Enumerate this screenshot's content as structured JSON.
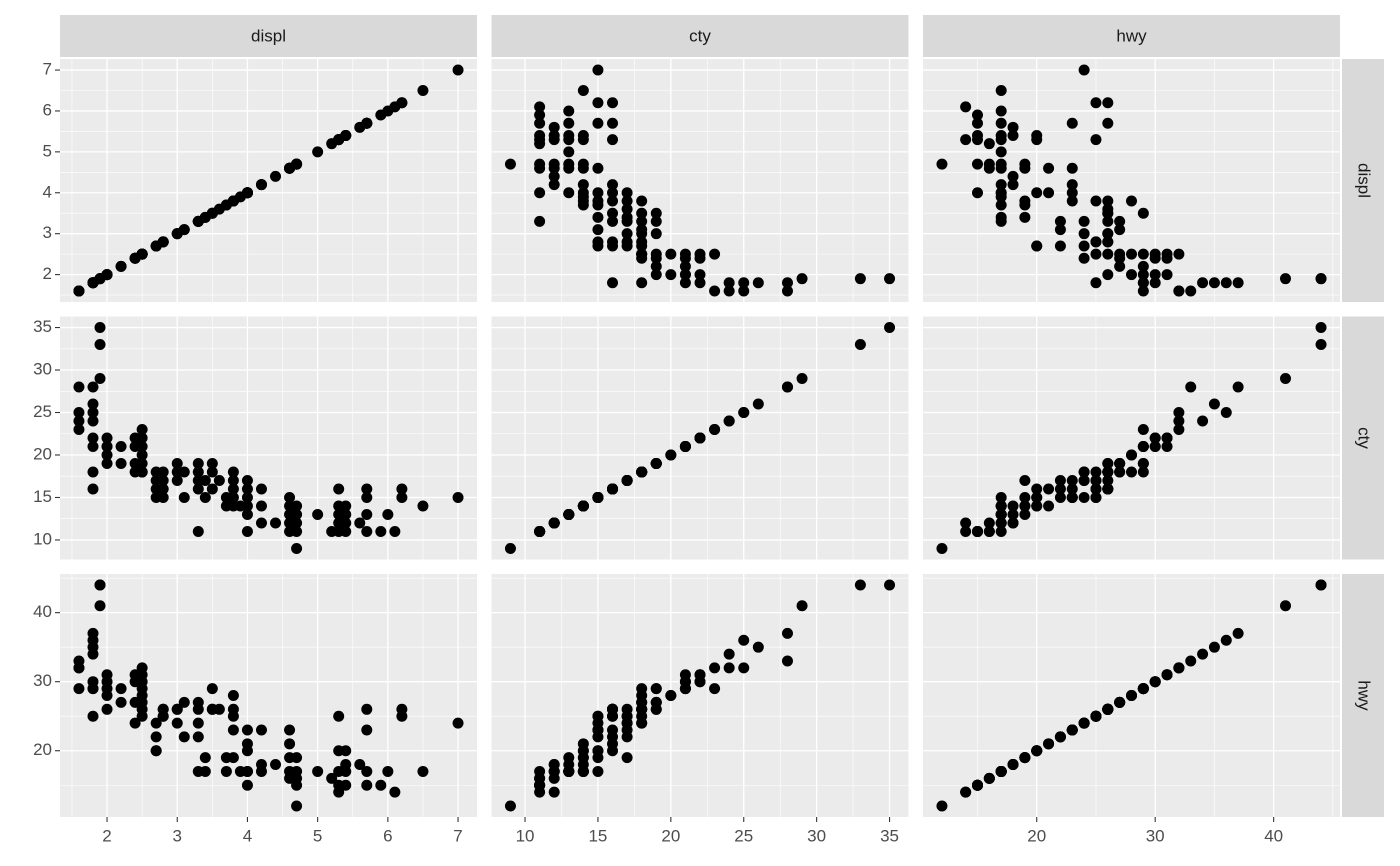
{
  "chart_data": {
    "type": "scatter_matrix",
    "variables": [
      {
        "name": "displ",
        "lim": [
          1.33,
          7.27
        ],
        "ticks": [
          2,
          3,
          4,
          5,
          6,
          7
        ],
        "values": [
          1.6,
          1.6,
          1.6,
          1.6,
          1.8,
          1.8,
          1.8,
          1.8,
          1.8,
          1.8,
          1.8,
          1.8,
          1.9,
          1.9,
          1.9,
          2.0,
          2.0,
          2.0,
          2.0,
          2.0,
          2.2,
          2.2,
          2.4,
          2.4,
          2.4,
          2.4,
          2.5,
          2.5,
          2.5,
          2.5,
          2.5,
          2.5,
          2.5,
          2.5,
          2.7,
          2.7,
          2.7,
          2.7,
          2.8,
          2.8,
          2.8,
          2.8,
          3.0,
          3.0,
          3.0,
          3.1,
          3.1,
          3.3,
          3.3,
          3.3,
          3.3,
          3.3,
          3.4,
          3.4,
          3.5,
          3.5,
          3.5,
          3.6,
          3.7,
          3.7,
          3.8,
          3.8,
          3.8,
          3.8,
          3.8,
          3.9,
          4.0,
          4.0,
          4.0,
          4.0,
          4.0,
          4.0,
          4.2,
          4.2,
          4.2,
          4.4,
          4.6,
          4.6,
          4.6,
          4.6,
          4.6,
          4.7,
          4.7,
          4.7,
          4.7,
          4.7,
          5.0,
          5.2,
          5.3,
          5.3,
          5.3,
          5.3,
          5.3,
          5.4,
          5.4,
          5.4,
          5.4,
          5.6,
          5.7,
          5.7,
          5.7,
          5.7,
          5.9,
          6.0,
          6.1,
          6.2,
          6.2,
          6.5,
          7.0
        ]
      },
      {
        "name": "cty",
        "lim": [
          7.7,
          36.3
        ],
        "ticks": [
          10,
          15,
          20,
          25,
          30,
          35
        ],
        "values": [
          28,
          24,
          25,
          23,
          18,
          21,
          28,
          26,
          25,
          24,
          16,
          22,
          35,
          33,
          29,
          21,
          22,
          20,
          19,
          21,
          21,
          19,
          21,
          19,
          18,
          22,
          23,
          21,
          19,
          18,
          20,
          22,
          18,
          18,
          17,
          16,
          15,
          18,
          16,
          18,
          17,
          15,
          18,
          17,
          19,
          18,
          15,
          18,
          17,
          16,
          11,
          19,
          15,
          17,
          19,
          18,
          16,
          17,
          15,
          14,
          18,
          16,
          15,
          17,
          14,
          14,
          17,
          15,
          14,
          16,
          13,
          11,
          14,
          12,
          16,
          12,
          15,
          14,
          13,
          12,
          11,
          14,
          13,
          12,
          9,
          11,
          13,
          11,
          16,
          14,
          11,
          13,
          12,
          13,
          11,
          12,
          14,
          12,
          16,
          15,
          13,
          11,
          11,
          13,
          11,
          16,
          15,
          14,
          15
        ]
      },
      {
        "name": "hwy",
        "lim": [
          10.4,
          45.6
        ],
        "ticks": [
          20,
          30,
          40
        ],
        "values": [
          33,
          32,
          32,
          29,
          29,
          29,
          37,
          35,
          36,
          34,
          25,
          30,
          44,
          44,
          41,
          29,
          31,
          28,
          26,
          30,
          29,
          27,
          31,
          27,
          24,
          30,
          32,
          30,
          29,
          27,
          28,
          31,
          26,
          25,
          22,
          20,
          20,
          24,
          26,
          26,
          25,
          25,
          26,
          24,
          26,
          27,
          22,
          26,
          24,
          22,
          17,
          27,
          17,
          19,
          29,
          26,
          26,
          26,
          19,
          17,
          28,
          26,
          23,
          25,
          19,
          17,
          23,
          20,
          17,
          21,
          17,
          15,
          18,
          17,
          23,
          18,
          23,
          21,
          19,
          17,
          16,
          19,
          17,
          16,
          12,
          15,
          17,
          16,
          25,
          20,
          15,
          17,
          14,
          18,
          15,
          17,
          20,
          18,
          26,
          23,
          17,
          15,
          15,
          17,
          14,
          26,
          25,
          17,
          24
        ]
      }
    ]
  }
}
